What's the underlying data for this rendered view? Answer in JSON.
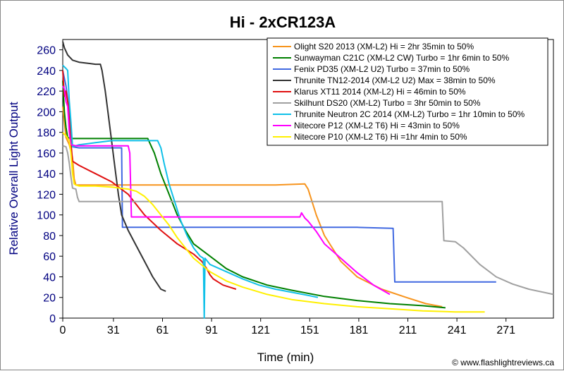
{
  "chart_data": {
    "type": "line",
    "title": "Hi - 2xCR123A",
    "xlabel": "Time (min)",
    "ylabel": "Relative Overall Light Output",
    "xlim": [
      0,
      300
    ],
    "ylim": [
      0,
      270
    ],
    "x_ticks": [
      0,
      31,
      61,
      91,
      121,
      151,
      181,
      211,
      241,
      271
    ],
    "x_tick_labels": [
      "0",
      "31",
      "61",
      "91",
      "121",
      "151",
      "181",
      "211",
      "241",
      "271"
    ],
    "y_ticks": [
      0,
      20,
      40,
      60,
      80,
      100,
      120,
      140,
      160,
      180,
      200,
      220,
      240,
      260
    ],
    "y_tick_labels": [
      "0",
      "20",
      "40",
      "60",
      "80",
      "100",
      "120",
      "140",
      "160",
      "180",
      "200",
      "220",
      "240",
      "260"
    ],
    "grid": false,
    "legend_position": "top-right",
    "credit": "© www.flashlightreviews.ca",
    "series": [
      {
        "name": "Olight S20 2013 (XM-L2) Hi = 2hr 35min to 50%",
        "color": "#F7941D",
        "points": [
          [
            0,
            205
          ],
          [
            1,
            190
          ],
          [
            2,
            175
          ],
          [
            4,
            168
          ],
          [
            6,
            155
          ],
          [
            7,
            135
          ],
          [
            8,
            129
          ],
          [
            30,
            129
          ],
          [
            60,
            129
          ],
          [
            100,
            129
          ],
          [
            130,
            129
          ],
          [
            148,
            130
          ],
          [
            150,
            125
          ],
          [
            155,
            100
          ],
          [
            160,
            80
          ],
          [
            170,
            55
          ],
          [
            180,
            40
          ],
          [
            195,
            28
          ],
          [
            210,
            20
          ],
          [
            222,
            14
          ],
          [
            232,
            11
          ]
        ]
      },
      {
        "name": "Sunwayman C21C (XM-L2 CW) Turbo = 1hr 6min to 50%",
        "color": "#008000",
        "points": [
          [
            0,
            230
          ],
          [
            1,
            200
          ],
          [
            2,
            185
          ],
          [
            3,
            175
          ],
          [
            5,
            174
          ],
          [
            20,
            174
          ],
          [
            40,
            174
          ],
          [
            52,
            174
          ],
          [
            56,
            160
          ],
          [
            60,
            140
          ],
          [
            65,
            120
          ],
          [
            70,
            100
          ],
          [
            75,
            85
          ],
          [
            80,
            72
          ],
          [
            90,
            60
          ],
          [
            100,
            48
          ],
          [
            110,
            40
          ],
          [
            125,
            32
          ],
          [
            140,
            27
          ],
          [
            160,
            21
          ],
          [
            180,
            17
          ],
          [
            200,
            14
          ],
          [
            220,
            12
          ],
          [
            234,
            10
          ]
        ]
      },
      {
        "name": "Fenix PD35 (XM-L2 U2) Turbo = 37min to 50%",
        "color": "#4169E1",
        "points": [
          [
            0,
            240
          ],
          [
            2,
            225
          ],
          [
            4,
            200
          ],
          [
            5,
            175
          ],
          [
            6,
            166
          ],
          [
            10,
            165
          ],
          [
            20,
            165
          ],
          [
            30,
            165
          ],
          [
            34,
            165
          ],
          [
            36,
            165
          ],
          [
            36.5,
            88
          ],
          [
            60,
            88
          ],
          [
            100,
            88
          ],
          [
            150,
            88
          ],
          [
            180,
            88
          ],
          [
            202,
            87
          ],
          [
            203,
            35
          ],
          [
            230,
            35
          ],
          [
            265,
            35
          ]
        ]
      },
      {
        "name": "Thrunite TN12-2014 (XM-L2 U2) Max = 38min to 50%",
        "color": "#333333",
        "points": [
          [
            0,
            268
          ],
          [
            1,
            262
          ],
          [
            3,
            255
          ],
          [
            6,
            250
          ],
          [
            10,
            248
          ],
          [
            15,
            247
          ],
          [
            20,
            246
          ],
          [
            23,
            246
          ],
          [
            24,
            240
          ],
          [
            26,
            220
          ],
          [
            28,
            195
          ],
          [
            30,
            170
          ],
          [
            32,
            145
          ],
          [
            34,
            120
          ],
          [
            36,
            100
          ],
          [
            40,
            85
          ],
          [
            45,
            70
          ],
          [
            50,
            55
          ],
          [
            55,
            40
          ],
          [
            60,
            28
          ],
          [
            63,
            26
          ]
        ]
      },
      {
        "name": "Klarus XT11 2014 (XM-L2) Hi = 46min to 50%",
        "color": "#E01010",
        "points": [
          [
            0,
            240
          ],
          [
            1,
            215
          ],
          [
            2,
            220
          ],
          [
            3,
            210
          ],
          [
            4,
            200
          ],
          [
            5,
            170
          ],
          [
            6,
            152
          ],
          [
            8,
            150
          ],
          [
            10,
            148
          ],
          [
            20,
            140
          ],
          [
            30,
            132
          ],
          [
            40,
            120
          ],
          [
            50,
            100
          ],
          [
            60,
            85
          ],
          [
            70,
            72
          ],
          [
            80,
            62
          ],
          [
            85,
            55
          ],
          [
            88,
            48
          ],
          [
            90,
            42
          ],
          [
            92,
            38
          ],
          [
            95,
            35
          ],
          [
            98,
            32
          ],
          [
            102,
            30
          ],
          [
            106,
            28
          ]
        ]
      },
      {
        "name": "Skilhunt DS20 (XM-L2) Turbo = 3hr 50min to 50%",
        "color": "#A0A0A0",
        "points": [
          [
            0,
            167
          ],
          [
            2,
            166
          ],
          [
            3,
            160
          ],
          [
            4,
            150
          ],
          [
            5,
            137
          ],
          [
            6,
            126
          ],
          [
            8,
            125
          ],
          [
            9,
            117
          ],
          [
            10,
            113
          ],
          [
            20,
            113
          ],
          [
            60,
            113
          ],
          [
            100,
            113
          ],
          [
            150,
            113
          ],
          [
            200,
            113
          ],
          [
            220,
            113
          ],
          [
            232,
            113
          ],
          [
            233,
            75
          ],
          [
            240,
            74
          ],
          [
            245,
            68
          ],
          [
            255,
            52
          ],
          [
            265,
            40
          ],
          [
            275,
            33
          ],
          [
            285,
            28
          ],
          [
            300,
            23
          ]
        ]
      },
      {
        "name": "Thrunite Neutron 2C 2014 (XM-L2) Turbo = 1hr 10min to 50%",
        "color": "#10C0E8",
        "points": [
          [
            0,
            245
          ],
          [
            2,
            242
          ],
          [
            3,
            240
          ],
          [
            4,
            210
          ],
          [
            5,
            190
          ],
          [
            6,
            166
          ],
          [
            10,
            168
          ],
          [
            20,
            170
          ],
          [
            30,
            172
          ],
          [
            40,
            172
          ],
          [
            52,
            172
          ],
          [
            58,
            172
          ],
          [
            60,
            165
          ],
          [
            62,
            150
          ],
          [
            65,
            130
          ],
          [
            68,
            115
          ],
          [
            72,
            95
          ],
          [
            76,
            80
          ],
          [
            80,
            68
          ],
          [
            84,
            60
          ],
          [
            86,
            58
          ],
          [
            86.5,
            0
          ],
          [
            87,
            58
          ],
          [
            90,
            52
          ],
          [
            100,
            45
          ],
          [
            110,
            38
          ],
          [
            120,
            32
          ],
          [
            130,
            28
          ],
          [
            140,
            25
          ],
          [
            150,
            22
          ],
          [
            156,
            20
          ]
        ]
      },
      {
        "name": "Nitecore P12 (XM-L2 T6) Hi = 43min to 50%",
        "color": "#FF00FF",
        "points": [
          [
            0,
            225
          ],
          [
            1,
            222
          ],
          [
            2,
            210
          ],
          [
            3,
            205
          ],
          [
            4,
            180
          ],
          [
            5,
            168
          ],
          [
            8,
            167
          ],
          [
            20,
            167
          ],
          [
            30,
            167
          ],
          [
            40,
            167
          ],
          [
            41,
            160
          ],
          [
            42,
            98
          ],
          [
            60,
            98
          ],
          [
            100,
            98
          ],
          [
            140,
            98
          ],
          [
            145,
            98
          ],
          [
            146,
            102
          ],
          [
            148,
            97
          ],
          [
            150,
            94
          ],
          [
            155,
            84
          ],
          [
            160,
            72
          ],
          [
            170,
            58
          ],
          [
            180,
            44
          ],
          [
            190,
            32
          ],
          [
            200,
            23
          ]
        ]
      },
      {
        "name": "Nitecore P10 (XM-L2 T6) Hi =1hr 4min to 50%",
        "color": "#FFF000",
        "points": [
          [
            0,
            180
          ],
          [
            1,
            178
          ],
          [
            2,
            177
          ],
          [
            4,
            172
          ],
          [
            5,
            160
          ],
          [
            6,
            140
          ],
          [
            7,
            130
          ],
          [
            8,
            129
          ],
          [
            10,
            128
          ],
          [
            20,
            128
          ],
          [
            30,
            127
          ],
          [
            40,
            125
          ],
          [
            45,
            123
          ],
          [
            50,
            118
          ],
          [
            55,
            110
          ],
          [
            60,
            100
          ],
          [
            65,
            90
          ],
          [
            70,
            78
          ],
          [
            75,
            68
          ],
          [
            80,
            58
          ],
          [
            90,
            45
          ],
          [
            100,
            36
          ],
          [
            110,
            30
          ],
          [
            125,
            23
          ],
          [
            140,
            18
          ],
          [
            160,
            14
          ],
          [
            180,
            11
          ],
          [
            200,
            9
          ],
          [
            220,
            7
          ],
          [
            240,
            6
          ],
          [
            258,
            6
          ]
        ]
      }
    ]
  }
}
